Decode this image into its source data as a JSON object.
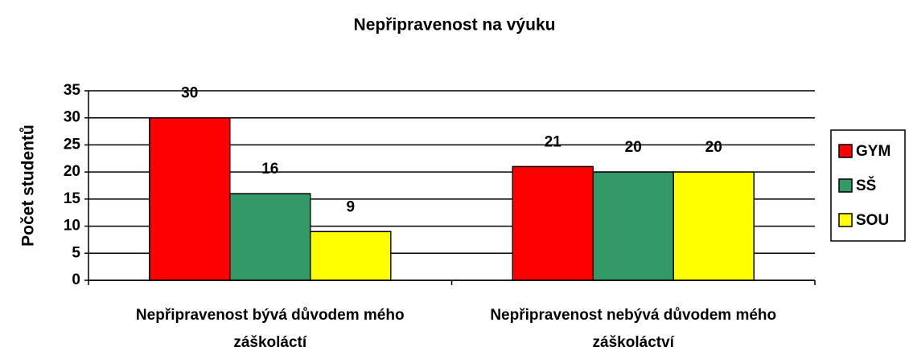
{
  "chart_data": {
    "type": "bar",
    "title": "Nepřipravenost na výuku",
    "y_label": "Počet studentů",
    "categories": [
      "Nepřipravenost bývá důvodem mého záškoláctí",
      "Nepřipravenost nebývá důvodem mého záškoláctví"
    ],
    "series": [
      {
        "name": "GYM",
        "color": "#ff0000",
        "values": [
          30,
          21
        ]
      },
      {
        "name": "SŠ",
        "color": "#339966",
        "values": [
          16,
          20
        ]
      },
      {
        "name": "SOU",
        "color": "#ffff00",
        "values": [
          9,
          20
        ]
      }
    ],
    "ylim": [
      0,
      35
    ],
    "yticks": [
      0,
      5,
      10,
      15,
      20,
      25,
      30,
      35
    ],
    "grid": true,
    "legend": "right"
  }
}
